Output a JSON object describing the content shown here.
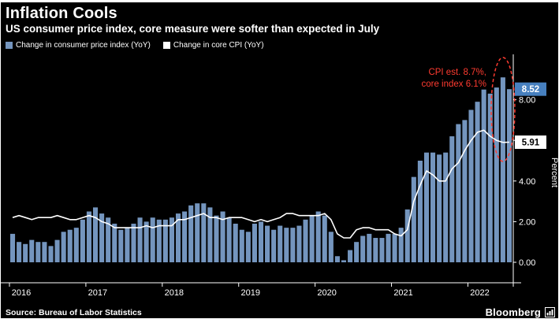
{
  "header": {
    "title": "Inflation Cools",
    "subtitle": "US consumer price index, core measure were softer than expected in July"
  },
  "legend": {
    "items": [
      {
        "label": "Change in consumer price index (YoY)",
        "color": "#7495be"
      },
      {
        "label": "Change in core CPI (YoY)",
        "color": "#ffffff"
      }
    ]
  },
  "annotation": {
    "line1": "CPI est. 8.7%,",
    "line2": "core index 6.1%",
    "color": "#ff3b30"
  },
  "badges": [
    {
      "value": "8.52",
      "bg": "#4780bf",
      "fg": "#ffffff"
    },
    {
      "value": "5.91",
      "bg": "#ffffff",
      "fg": "#000000"
    }
  ],
  "footer": {
    "source": "Source: Bureau of Labor Statistics",
    "brand": "Bloomberg"
  },
  "icons": {
    "brand_icon": "bloomberg-terminal-chart-icon"
  },
  "chart_data": {
    "type": "bar",
    "title": "Inflation Cools",
    "subtitle": "US consumer price index, core measure were softer than expected in July",
    "x_years": [
      2016,
      2017,
      2018,
      2019,
      2020,
      2021,
      2022
    ],
    "months_per_year": 12,
    "ylabel": "Percent",
    "ylim": [
      0,
      10
    ],
    "y_ticks": [
      0,
      2,
      4,
      6,
      8
    ],
    "y_tick_labels": [
      "0.00",
      "2.00",
      "4.00",
      "6.00",
      "8.00"
    ],
    "legend_position": "top-left",
    "grid": false,
    "series": [
      {
        "name": "Change in consumer price index (YoY)",
        "type": "bar",
        "color": "#7495be",
        "values": [
          1.4,
          1.0,
          0.9,
          1.1,
          1.0,
          1.0,
          0.8,
          1.1,
          1.5,
          1.6,
          1.7,
          2.1,
          2.5,
          2.7,
          2.4,
          2.2,
          1.9,
          1.6,
          1.7,
          1.9,
          2.2,
          2.0,
          2.2,
          2.1,
          2.1,
          2.2,
          2.4,
          2.5,
          2.8,
          2.9,
          2.9,
          2.7,
          2.3,
          2.5,
          2.2,
          1.9,
          1.6,
          1.5,
          1.9,
          2.0,
          1.8,
          1.6,
          1.8,
          1.7,
          1.7,
          1.8,
          2.1,
          2.3,
          2.5,
          2.3,
          1.5,
          0.3,
          0.1,
          0.6,
          1.0,
          1.3,
          1.4,
          1.2,
          1.2,
          1.4,
          1.4,
          1.7,
          2.6,
          4.2,
          5.0,
          5.4,
          5.4,
          5.3,
          5.4,
          6.2,
          6.8,
          7.0,
          7.5,
          7.9,
          8.5,
          8.3,
          8.6,
          9.1,
          8.52
        ]
      },
      {
        "name": "Change in core CPI (YoY)",
        "type": "line",
        "color": "#ffffff",
        "values": [
          2.2,
          2.3,
          2.2,
          2.1,
          2.2,
          2.2,
          2.2,
          2.3,
          2.2,
          2.1,
          2.1,
          2.2,
          2.3,
          2.2,
          2.0,
          1.9,
          1.7,
          1.7,
          1.7,
          1.7,
          1.7,
          1.8,
          1.7,
          1.8,
          1.8,
          1.8,
          2.1,
          2.1,
          2.2,
          2.3,
          2.4,
          2.2,
          2.2,
          2.1,
          2.2,
          2.2,
          2.2,
          2.1,
          2.0,
          2.1,
          2.0,
          2.1,
          2.2,
          2.4,
          2.4,
          2.3,
          2.3,
          2.3,
          2.3,
          2.4,
          2.1,
          1.4,
          1.2,
          1.2,
          1.6,
          1.7,
          1.7,
          1.6,
          1.6,
          1.6,
          1.4,
          1.3,
          1.6,
          3.0,
          3.8,
          4.5,
          4.3,
          4.0,
          4.0,
          4.6,
          4.9,
          5.5,
          6.0,
          6.4,
          6.5,
          6.2,
          6.0,
          5.9,
          5.91
        ]
      }
    ],
    "last_value_labels": {
      "cpi": "8.52",
      "core_cpi": "5.91"
    },
    "annotation_text": "CPI est. 8.7%, core index 6.1%"
  }
}
